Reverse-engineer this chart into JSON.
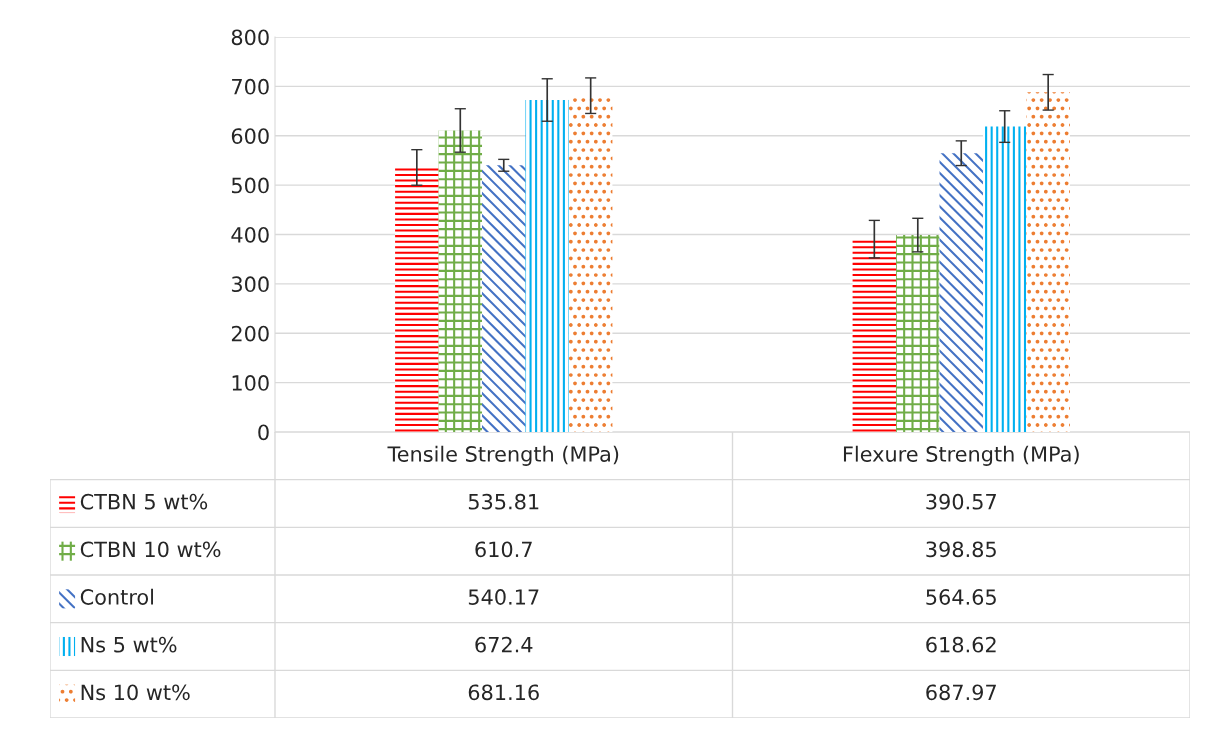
{
  "chart_data": {
    "type": "bar",
    "categories": [
      "Tensile Strength (MPa)",
      "Flexure Strength (MPa)"
    ],
    "series": [
      {
        "name": "CTBN 5 wt%",
        "color": "#ff0000",
        "values": [
          535.81,
          390.57
        ],
        "errors": [
          36,
          38
        ]
      },
      {
        "name": "CTBN 10 wt%",
        "color": "#70ad47",
        "values": [
          610.7,
          398.85
        ],
        "errors": [
          44,
          34
        ]
      },
      {
        "name": "Control",
        "color": "#4472c4",
        "values": [
          540.17,
          564.65
        ],
        "errors": [
          12,
          25
        ]
      },
      {
        "name": "Ns 5 wt%",
        "color": "#00b0f0",
        "values": [
          672.4,
          618.62
        ],
        "errors": [
          43,
          32
        ]
      },
      {
        "name": "Ns 10 wt%",
        "color": "#ed7d31",
        "values": [
          681.16,
          687.97
        ],
        "errors": [
          36,
          36
        ]
      }
    ],
    "ylim": [
      0,
      800
    ],
    "yticks": [
      0,
      100,
      200,
      300,
      400,
      500,
      600,
      700,
      800
    ],
    "grid": "y",
    "data_labels": true,
    "legend": "bottom"
  }
}
